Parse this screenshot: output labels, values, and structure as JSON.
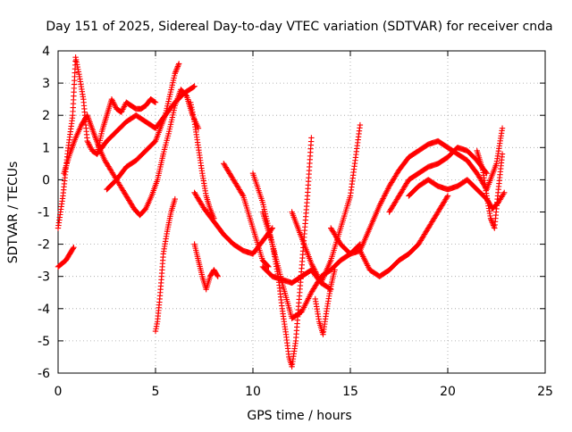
{
  "chart_data": {
    "type": "scatter",
    "title": "Day 151 of 2025, Sidereal Day-to-day VTEC variation (SDTVAR) for receiver cnda",
    "xlabel": "GPS time / hours",
    "ylabel": "SDTVAR / TECUs",
    "xlim": [
      0,
      25
    ],
    "ylim": [
      -6,
      4
    ],
    "xticks": [
      0,
      5,
      10,
      15,
      20,
      25
    ],
    "yticks": [
      -6,
      -5,
      -4,
      -3,
      -2,
      -1,
      0,
      1,
      2,
      3,
      4
    ],
    "grid": true,
    "marker": "+",
    "color": "#ff0000",
    "series": [
      {
        "name": "trace-1",
        "x": [
          0.0,
          0.25,
          0.5,
          0.75,
          0.9,
          1.1,
          1.3,
          1.5,
          1.75,
          2.0,
          2.25,
          2.5,
          2.75,
          3.0,
          3.25,
          3.5,
          3.75,
          4.0,
          4.25,
          4.5,
          4.75,
          5.0
        ],
        "y": [
          -1.5,
          -0.5,
          0.9,
          2.0,
          3.8,
          3.2,
          2.5,
          1.2,
          0.9,
          0.8,
          1.5,
          2.0,
          2.5,
          2.2,
          2.1,
          2.4,
          2.3,
          2.2,
          2.2,
          2.3,
          2.5,
          2.4
        ]
      },
      {
        "name": "trace-2",
        "x": [
          0.0,
          0.2,
          0.4,
          0.6,
          0.8
        ],
        "y": [
          -2.7,
          -2.6,
          -2.5,
          -2.3,
          -2.1
        ]
      },
      {
        "name": "trace-3",
        "x": [
          0.3,
          0.6,
          0.9,
          1.2,
          1.5,
          1.8,
          2.1,
          2.4,
          2.7,
          3.0,
          3.3,
          3.6,
          3.9,
          4.2,
          4.5,
          4.8,
          5.1,
          5.4,
          5.7,
          6.0,
          6.3,
          6.6,
          6.9,
          7.2
        ],
        "y": [
          0.2,
          0.8,
          1.3,
          1.7,
          2.0,
          1.5,
          1.0,
          0.6,
          0.3,
          0.0,
          -0.3,
          -0.6,
          -0.9,
          -1.1,
          -0.9,
          -0.5,
          0.0,
          0.8,
          1.5,
          2.3,
          2.8,
          2.6,
          2.0,
          1.6
        ]
      },
      {
        "name": "trace-4",
        "x": [
          2.0,
          2.5,
          3.0,
          3.5,
          4.0,
          4.5,
          5.0,
          5.5,
          6.0,
          6.5,
          7.0
        ],
        "y": [
          0.8,
          1.2,
          1.5,
          1.8,
          2.0,
          1.8,
          1.6,
          2.0,
          2.4,
          2.7,
          2.9
        ]
      },
      {
        "name": "trace-5",
        "x": [
          2.5,
          3.0,
          3.5,
          4.0,
          4.5,
          5.0,
          5.5,
          6.0,
          6.2
        ],
        "y": [
          -0.3,
          0.0,
          0.4,
          0.6,
          0.9,
          1.2,
          2.0,
          3.3,
          3.6
        ]
      },
      {
        "name": "trace-6",
        "x": [
          5.0,
          5.1,
          5.2,
          5.3,
          5.4,
          5.6,
          5.8,
          6.0
        ],
        "y": [
          -4.7,
          -4.4,
          -3.8,
          -3.1,
          -2.3,
          -1.6,
          -1.0,
          -0.6
        ]
      },
      {
        "name": "trace-7",
        "x": [
          6.8,
          7.0,
          7.2,
          7.4,
          7.6,
          7.8,
          8.0
        ],
        "y": [
          2.4,
          1.8,
          1.0,
          0.2,
          -0.5,
          -0.9,
          -1.2
        ]
      },
      {
        "name": "trace-8",
        "x": [
          7.0,
          7.2,
          7.4,
          7.6,
          7.8,
          8.0,
          8.2
        ],
        "y": [
          -2.0,
          -2.5,
          -3.0,
          -3.4,
          -3.0,
          -2.8,
          -3.0
        ]
      },
      {
        "name": "trace-9",
        "x": [
          7.0,
          7.5,
          8.0,
          8.5,
          9.0,
          9.5,
          10.0,
          10.5,
          11.0
        ],
        "y": [
          -0.4,
          -0.9,
          -1.3,
          -1.7,
          -2.0,
          -2.2,
          -2.3,
          -1.9,
          -1.5
        ]
      },
      {
        "name": "trace-10",
        "x": [
          8.5,
          9.0,
          9.5,
          10.0,
          10.5,
          10.8
        ],
        "y": [
          0.5,
          0.0,
          -0.5,
          -1.5,
          -2.5,
          -2.7
        ]
      },
      {
        "name": "trace-11",
        "x": [
          10.0,
          10.5,
          11.0,
          11.3,
          11.5,
          11.7,
          11.85,
          12.0,
          12.2,
          12.4,
          12.6,
          12.8,
          13.0
        ],
        "y": [
          0.2,
          -0.7,
          -2.0,
          -3.0,
          -4.0,
          -4.8,
          -5.5,
          -5.8,
          -5.0,
          -3.5,
          -2.0,
          -0.5,
          1.3
        ]
      },
      {
        "name": "trace-12",
        "x": [
          10.5,
          11.0,
          11.5,
          12.0,
          12.5,
          13.0,
          13.5,
          14.0,
          14.5,
          15.0,
          15.5
        ],
        "y": [
          -1.0,
          -2.0,
          -3.2,
          -4.3,
          -4.1,
          -3.5,
          -3.0,
          -2.8,
          -2.5,
          -2.3,
          -2.0
        ]
      },
      {
        "name": "trace-13",
        "x": [
          10.5,
          11.0,
          11.5,
          12.0,
          12.5,
          13.0,
          13.5,
          14.0
        ],
        "y": [
          -2.7,
          -3.0,
          -3.1,
          -3.2,
          -3.0,
          -2.8,
          -3.2,
          -3.4
        ]
      },
      {
        "name": "trace-14",
        "x": [
          13.2,
          13.4,
          13.6,
          13.8,
          14.0,
          14.2
        ],
        "y": [
          -3.7,
          -4.4,
          -4.8,
          -4.0,
          -3.3,
          -2.8
        ]
      },
      {
        "name": "trace-15",
        "x": [
          12.0,
          12.5,
          13.0,
          13.5,
          14.0,
          14.5,
          15.0,
          15.5
        ],
        "y": [
          -1.0,
          -1.8,
          -2.6,
          -3.2,
          -2.5,
          -1.5,
          -0.5,
          1.7
        ]
      },
      {
        "name": "trace-16",
        "x": [
          14.0,
          14.5,
          15.0,
          15.5,
          16.0,
          16.5,
          17.0,
          17.5,
          18.0,
          18.5,
          19.0,
          19.5,
          20.0
        ],
        "y": [
          -1.5,
          -2.0,
          -2.3,
          -2.2,
          -2.8,
          -3.0,
          -2.8,
          -2.5,
          -2.3,
          -2.0,
          -1.5,
          -1.0,
          -0.5
        ]
      },
      {
        "name": "trace-17",
        "x": [
          15.5,
          16.0,
          16.5,
          17.0,
          17.5,
          18.0,
          18.5,
          19.0,
          19.5,
          20.0,
          20.5,
          21.0,
          21.5,
          22.0,
          22.5,
          22.8
        ],
        "y": [
          -2.2,
          -1.5,
          -0.8,
          -0.2,
          0.3,
          0.7,
          0.9,
          1.1,
          1.2,
          1.0,
          0.8,
          0.6,
          0.2,
          -0.3,
          0.5,
          1.6
        ]
      },
      {
        "name": "trace-18",
        "x": [
          17.0,
          17.5,
          18.0,
          18.5,
          19.0,
          19.5,
          20.0,
          20.5,
          21.0,
          21.5,
          22.0
        ],
        "y": [
          -1.0,
          -0.5,
          0.0,
          0.2,
          0.4,
          0.5,
          0.7,
          1.0,
          0.9,
          0.6,
          0.2
        ]
      },
      {
        "name": "trace-19",
        "x": [
          18.0,
          18.5,
          19.0,
          19.5,
          20.0,
          20.5,
          21.0,
          21.5,
          22.0,
          22.3,
          22.6,
          22.9
        ],
        "y": [
          -0.5,
          -0.2,
          0.0,
          -0.2,
          -0.3,
          -0.2,
          0.0,
          -0.3,
          -0.6,
          -0.9,
          -0.7,
          -0.4
        ]
      },
      {
        "name": "trace-20",
        "x": [
          21.5,
          21.8,
          22.0,
          22.2,
          22.4,
          22.6,
          22.8
        ],
        "y": [
          0.9,
          0.3,
          -0.5,
          -1.2,
          -1.5,
          -0.3,
          0.8
        ]
      }
    ]
  }
}
